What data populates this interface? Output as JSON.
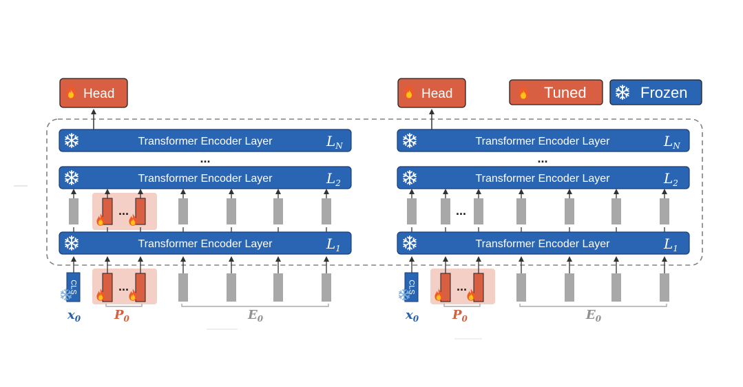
{
  "colors": {
    "encoder_blue": "#2a65b3",
    "tuned_orange": "#d95f43",
    "prompt_bg": "#f4cfc6",
    "token_gray": "#a8a8a8",
    "label_blue": "#2a5fa8",
    "label_orange": "#d0603e",
    "label_gray": "#909090"
  },
  "legend": {
    "tuned_label": "Tuned",
    "frozen_label": "Frozen",
    "tuned_icon": "flame-icon",
    "frozen_icon": "snowflake-icon"
  },
  "left_panel": {
    "head_label": "Head",
    "layers": [
      {
        "label": "Transformer Encoder Layer",
        "index": "L",
        "sub": "N"
      },
      {
        "label": "Transformer Encoder Layer",
        "index": "L",
        "sub": "2"
      },
      {
        "label": "Transformer Encoder Layer",
        "index": "L",
        "sub": "1"
      }
    ],
    "ellipsis": "...",
    "prompt_ellipsis": "...",
    "cls_label": "CLS",
    "x_label": "x",
    "x_sub": "0",
    "p_label": "P",
    "p_sub": "0",
    "e_label": "E",
    "e_sub": "0"
  },
  "right_panel": {
    "head_label": "Head",
    "layers": [
      {
        "label": "Transformer Encoder Layer",
        "index": "L",
        "sub": "N"
      },
      {
        "label": "Transformer Encoder Layer",
        "index": "L",
        "sub": "2"
      },
      {
        "label": "Transformer Encoder Layer",
        "index": "L",
        "sub": "1"
      }
    ],
    "ellipsis": "...",
    "prompt_ellipsis": "...",
    "cls_label": "CLS",
    "x_label": "x",
    "x_sub": "0",
    "p_label": "P",
    "p_sub": "0",
    "e_label": "E",
    "e_sub": "0"
  }
}
